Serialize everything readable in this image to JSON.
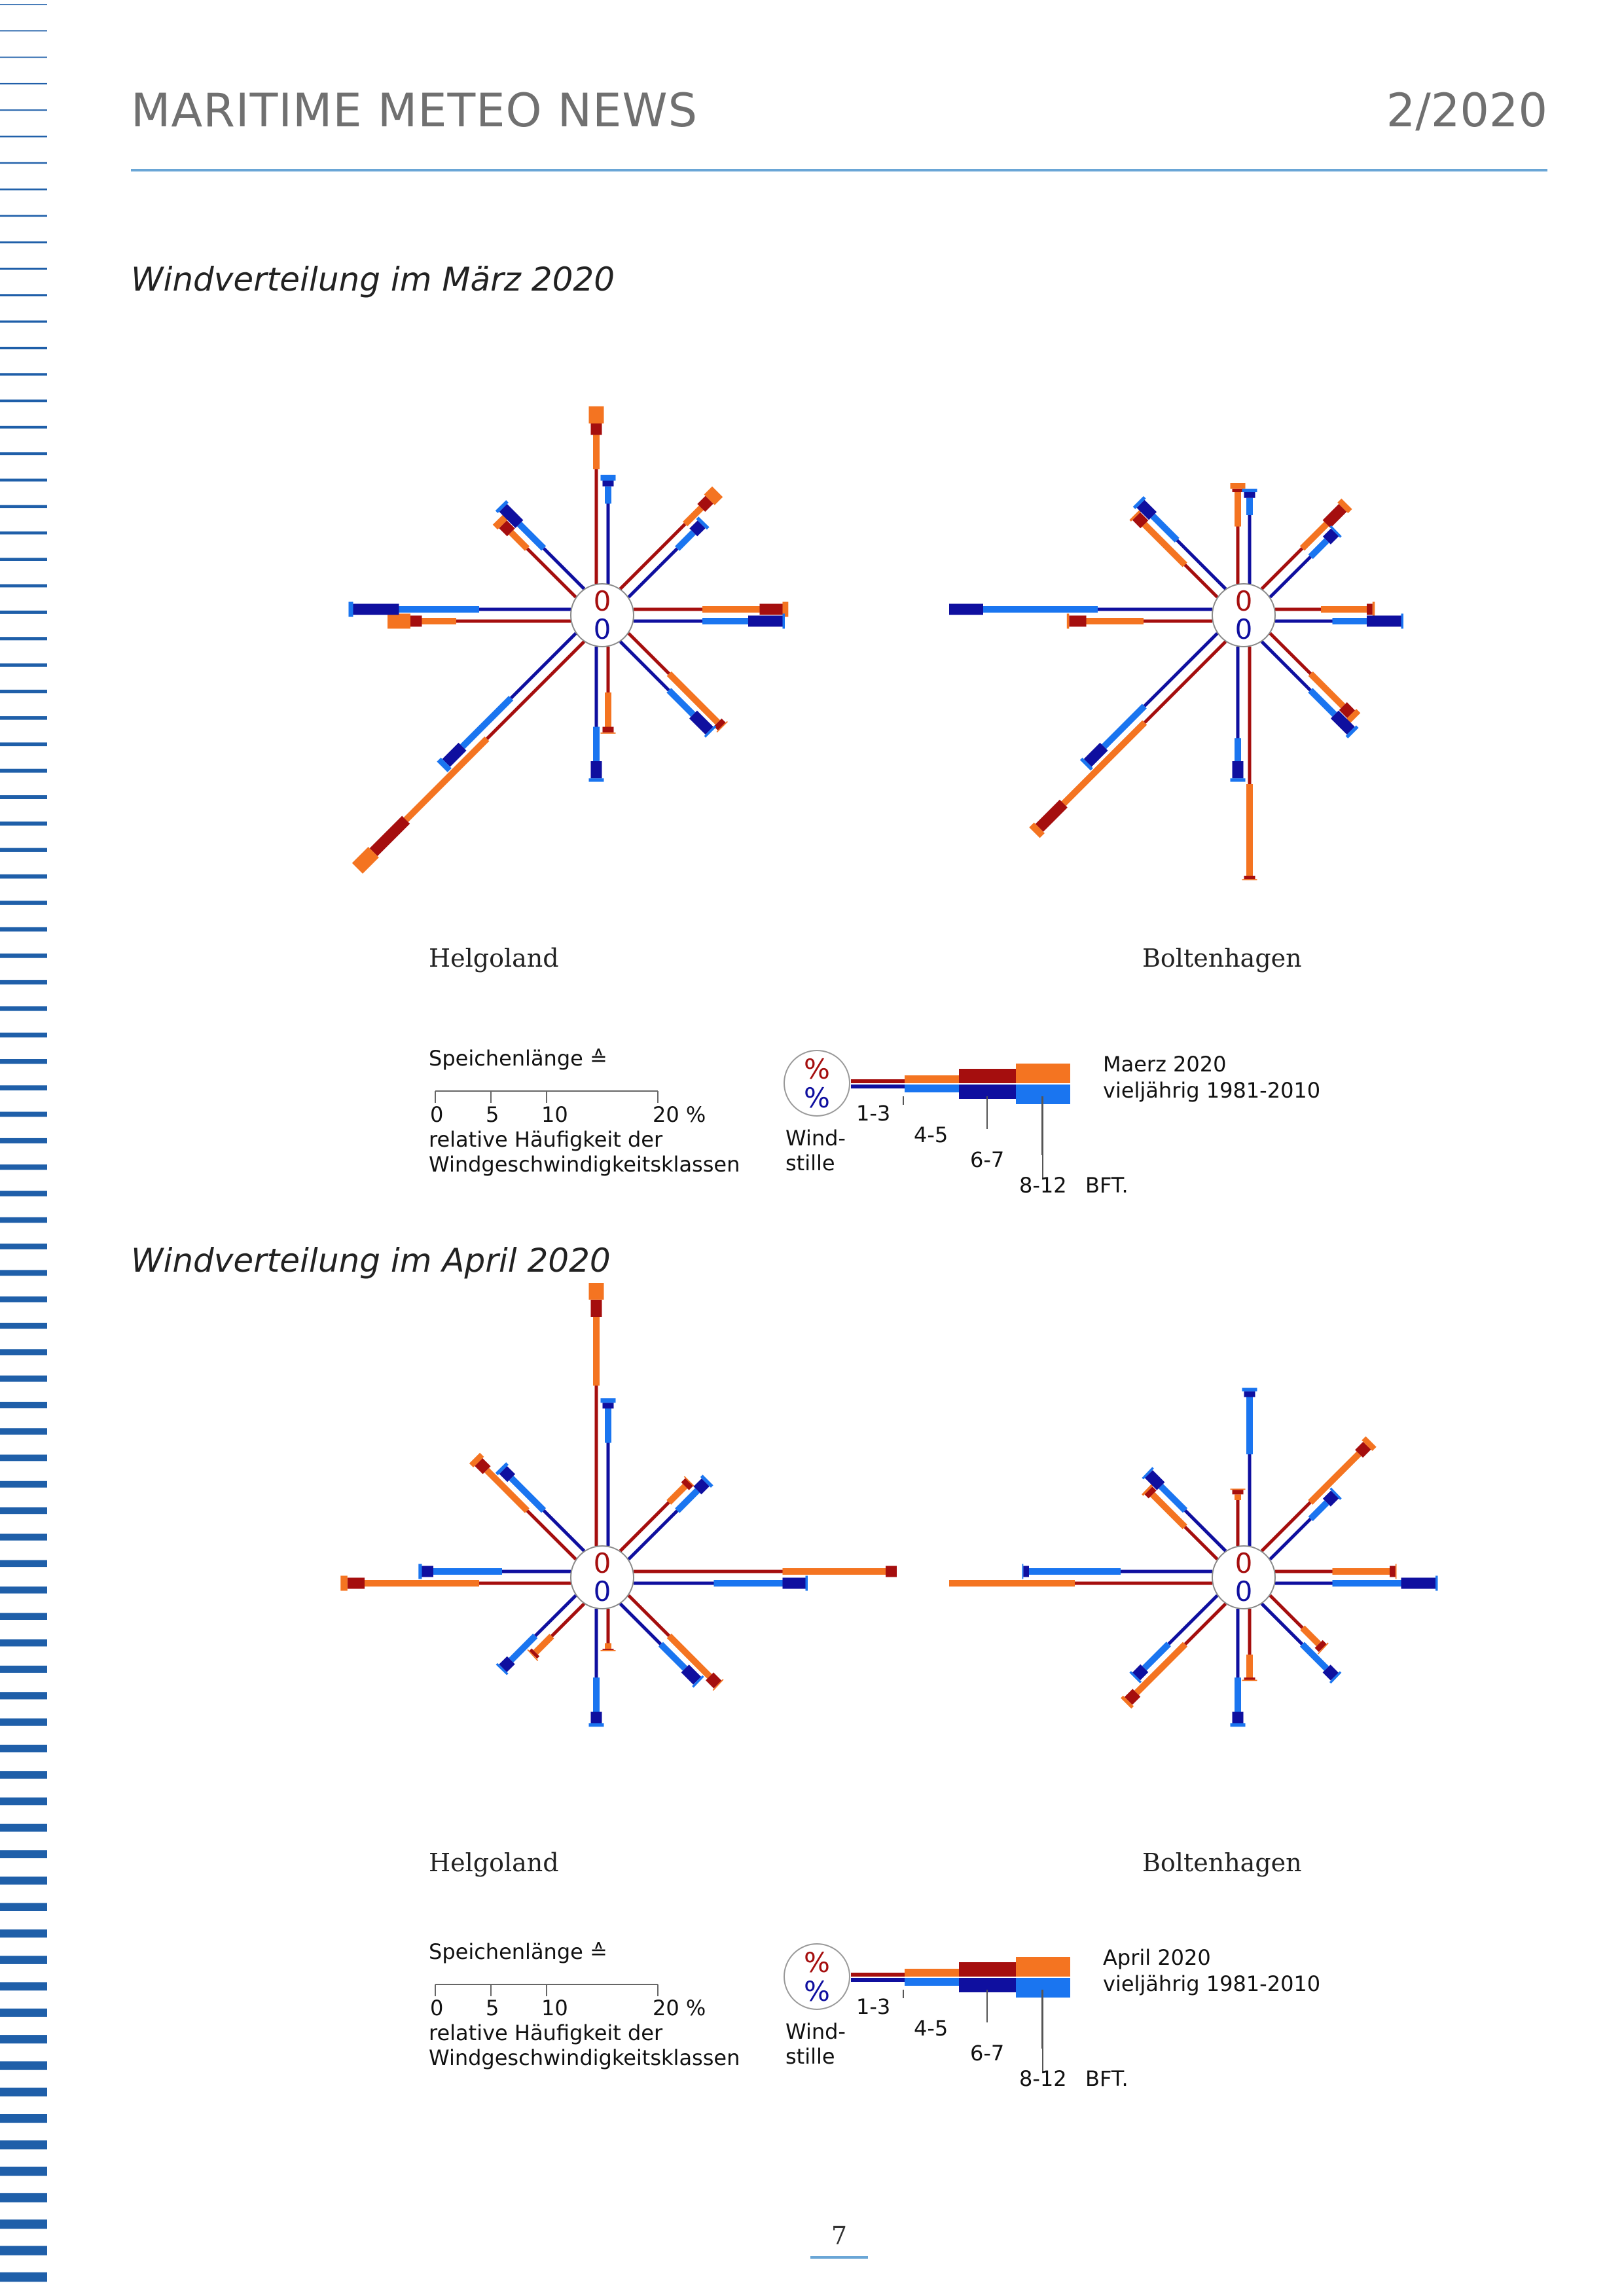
{
  "header": {
    "title": "MARITIME METEO NEWS",
    "issue": "2/2020"
  },
  "colors": {
    "stripes": "#1f5fa9",
    "rule": "#6aa6d6",
    "current_light": "#f47421",
    "current_dark": "#a50e0e",
    "climate_light": "#1a75f0",
    "climate_dark": "#0f0f9f"
  },
  "sections": [
    {
      "title": "Windverteilung im März 2020",
      "legend": {
        "heading": "Speichenlänge ≙",
        "ticks": [
          "0",
          "5",
          "10",
          "20 %"
        ],
        "desc1": "relative Häufigkeit der",
        "desc2": "Windgeschwindigkeitsklassen",
        "percent_top": "%",
        "percent_bottom": "%",
        "calm_label1": "Wind-",
        "calm_label2": "stille",
        "class_1": "1-3",
        "class_2": "4-5",
        "class_3": "6-7",
        "class_4": "8-12",
        "unit": "BFT.",
        "series_current": "Maerz 2020",
        "series_climate": "vieljährig 1981-2010"
      },
      "roses": [
        {
          "station": "Helgoland",
          "calm_current": "0",
          "calm_climate": "0",
          "current": {
            "N": [
              10,
              3,
              1,
              1.5
            ],
            "NE": [
              8,
              2,
              1,
              1
            ],
            "E": [
              6,
              5,
              2,
              0.5
            ],
            "SE": [
              5,
              6,
              0.5,
              0.1
            ],
            "S": [
              4,
              3,
              0.5,
              0.1
            ],
            "SW": [
              12,
              10,
              4,
              2
            ],
            "W": [
              10,
              3,
              1,
              2
            ],
            "NW": [
              6,
              2,
              1,
              0.6
            ]
          },
          "climate": {
            "N": [
              7,
              1.5,
              0.5,
              0.5
            ],
            "NE": [
              6,
              2,
              1,
              0.3
            ],
            "E": [
              6,
              4,
              3,
              0.2
            ],
            "SE": [
              6,
              3,
              2,
              0.2
            ],
            "S": [
              7,
              3,
              1.5,
              0.3
            ],
            "SW": [
              8,
              6,
              2,
              0.5
            ],
            "W": [
              8,
              7,
              4,
              0.4
            ],
            "NW": [
              5,
              3,
              2,
              0.3
            ]
          }
        },
        {
          "station": "Boltenhagen",
          "calm_current": "0",
          "calm_climate": "0",
          "current": {
            "N": [
              5,
              3,
              0.3,
              0.5
            ],
            "NE": [
              5,
              3,
              2,
              0.5
            ],
            "E": [
              4,
              4,
              0.5,
              0.2
            ],
            "SE": [
              5,
              4,
              1,
              0.5
            ],
            "S": [
              12,
              8,
              0.3,
              0.1
            ],
            "SW": [
              10,
              10,
              3,
              0.6
            ],
            "W": [
              6,
              5,
              1.5,
              0.2
            ],
            "NW": [
              4,
              5,
              1,
              0.2
            ]
          },
          "climate": {
            "N": [
              6,
              1.5,
              0.5,
              0.3
            ],
            "NE": [
              5,
              2,
              1,
              0.2
            ],
            "E": [
              5,
              3,
              3,
              0.2
            ],
            "SE": [
              6,
              3,
              2,
              0.3
            ],
            "S": [
              8,
              2,
              1.5,
              0.3
            ],
            "SW": [
              9,
              5,
              2,
              0.3
            ],
            "W": [
              10,
              10,
              4,
              0.3
            ],
            "NW": [
              6,
              3,
              1.5,
              0.3
            ]
          }
        }
      ]
    },
    {
      "title": "Windverteilung im April 2020",
      "legend": {
        "heading": "Speichenlänge ≙",
        "ticks": [
          "0",
          "5",
          "10",
          "20 %"
        ],
        "desc1": "relative Häufigkeit der",
        "desc2": "Windgeschwindigkeitsklassen",
        "percent_top": "%",
        "percent_bottom": "%",
        "calm_label1": "Wind-",
        "calm_label2": "stille",
        "class_1": "1-3",
        "class_2": "4-5",
        "class_3": "6-7",
        "class_4": "8-12",
        "unit": "BFT.",
        "series_current": "April 2020",
        "series_climate": "vieljährig 1981-2010"
      },
      "roses": [
        {
          "station": "Helgoland",
          "calm_current": "0",
          "calm_climate": "0",
          "current": {
            "N": [
              14,
              6,
              1.5,
              1.5
            ],
            "NE": [
              6,
              2,
              0.5,
              0.1
            ],
            "E": [
              13,
              9,
              1,
              0.5
            ],
            "SE": [
              5,
              5,
              1,
              0.1
            ],
            "S": [
              3,
              0.5,
              0.1,
              0.1
            ],
            "SW": [
              4,
              2,
              0.3,
              0.1
            ],
            "W": [
              8,
              10,
              1.5,
              0.6
            ],
            "NW": [
              6,
              5,
              1,
              0.5
            ]
          },
          "climate": {
            "N": [
              9,
              3,
              0.5,
              0.4
            ],
            "NE": [
              6,
              2.5,
              1,
              0.3
            ],
            "E": [
              7,
              6,
              2,
              0.2
            ],
            "SE": [
              5,
              3,
              1.5,
              0.2
            ],
            "S": [
              6,
              3,
              1,
              0.3
            ],
            "SW": [
              5,
              3,
              1,
              0.2
            ],
            "W": [
              6,
              6,
              1,
              0.3
            ],
            "NW": [
              5,
              4,
              1,
              0.3
            ]
          }
        },
        {
          "station": "Boltenhagen",
          "calm_current": "0",
          "calm_climate": "0",
          "current": {
            "N": [
              4,
              0.5,
              0.4,
              0.1
            ],
            "NE": [
              6,
              6,
              1,
              0.5
            ],
            "E": [
              5,
              5,
              0.5,
              0.1
            ],
            "SE": [
              4,
              2,
              0.5,
              0.1
            ],
            "S": [
              4,
              2,
              0.2,
              0.1
            ],
            "SW": [
              5,
              6,
              1,
              0.3
            ],
            "W": [
              12,
              12,
              0.5,
              0.1
            ],
            "NW": [
              4,
              4,
              0.5,
              0.2
            ]
          },
          "climate": {
            "N": [
              8,
              5,
              0.5,
              0.3
            ],
            "NE": [
              5,
              2,
              1,
              0.2
            ],
            "E": [
              5,
              6,
              3,
              0.2
            ],
            "SE": [
              5,
              3,
              1,
              0.2
            ],
            "S": [
              6,
              3,
              1,
              0.3
            ],
            "SW": [
              6,
              3,
              1,
              0.2
            ],
            "W": [
              8,
              8,
              0.5,
              0.1
            ],
            "NW": [
              5,
              3,
              1.5,
              0.2
            ]
          }
        }
      ]
    }
  ],
  "footer": {
    "page_number": "7"
  }
}
